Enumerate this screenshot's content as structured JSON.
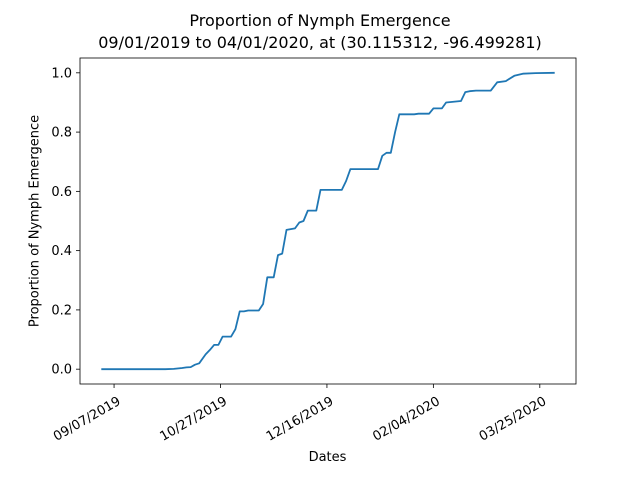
{
  "chart_data": {
    "type": "line",
    "title": "Proportion of Nymph Emergence",
    "subtitle": "09/01/2019 to 04/01/2020, at (30.115312, -96.499281)",
    "xlabel": "Dates",
    "ylabel": "Proportion of Nymph Emergence",
    "xlim": [
      "2019-08-22",
      "2020-04-11"
    ],
    "ylim": [
      -0.05,
      1.05
    ],
    "x_ticks": [
      "2019-09-07",
      "2019-10-27",
      "2019-12-16",
      "2020-02-04",
      "2020-03-25"
    ],
    "x_tick_labels": [
      "09/07/2019",
      "10/27/2019",
      "12/16/2019",
      "02/04/2020",
      "03/25/2020"
    ],
    "y_ticks": [
      0.0,
      0.2,
      0.4,
      0.6,
      0.8,
      1.0
    ],
    "y_tick_labels": [
      "0.0",
      "0.2",
      "0.4",
      "0.6",
      "0.8",
      "1.0"
    ],
    "grid": false,
    "legend": "none",
    "series": [
      {
        "color": "#1f77b4",
        "points": [
          [
            "2019-09-01",
            0.0
          ],
          [
            "2019-10-01",
            0.0
          ],
          [
            "2019-10-05",
            0.001
          ],
          [
            "2019-10-09",
            0.004
          ],
          [
            "2019-10-11",
            0.006
          ],
          [
            "2019-10-13",
            0.007
          ],
          [
            "2019-10-15",
            0.015
          ],
          [
            "2019-10-17",
            0.02
          ],
          [
            "2019-10-20",
            0.05
          ],
          [
            "2019-10-22",
            0.065
          ],
          [
            "2019-10-24",
            0.082
          ],
          [
            "2019-10-26",
            0.082
          ],
          [
            "2019-10-28",
            0.11
          ],
          [
            "2019-11-01",
            0.11
          ],
          [
            "2019-11-03",
            0.135
          ],
          [
            "2019-11-05",
            0.195
          ],
          [
            "2019-11-07",
            0.195
          ],
          [
            "2019-11-09",
            0.198
          ],
          [
            "2019-11-14",
            0.198
          ],
          [
            "2019-11-16",
            0.22
          ],
          [
            "2019-11-18",
            0.31
          ],
          [
            "2019-11-21",
            0.31
          ],
          [
            "2019-11-23",
            0.385
          ],
          [
            "2019-11-25",
            0.39
          ],
          [
            "2019-11-27",
            0.47
          ],
          [
            "2019-12-01",
            0.475
          ],
          [
            "2019-12-03",
            0.495
          ],
          [
            "2019-12-05",
            0.5
          ],
          [
            "2019-12-07",
            0.535
          ],
          [
            "2019-12-11",
            0.535
          ],
          [
            "2019-12-13",
            0.605
          ],
          [
            "2019-12-23",
            0.605
          ],
          [
            "2019-12-25",
            0.635
          ],
          [
            "2019-12-27",
            0.675
          ],
          [
            "2020-01-09",
            0.675
          ],
          [
            "2020-01-11",
            0.72
          ],
          [
            "2020-01-13",
            0.73
          ],
          [
            "2020-01-15",
            0.73
          ],
          [
            "2020-01-17",
            0.8
          ],
          [
            "2020-01-19",
            0.86
          ],
          [
            "2020-01-26",
            0.86
          ],
          [
            "2020-01-28",
            0.862
          ],
          [
            "2020-02-02",
            0.862
          ],
          [
            "2020-02-04",
            0.88
          ],
          [
            "2020-02-08",
            0.88
          ],
          [
            "2020-02-10",
            0.9
          ],
          [
            "2020-02-17",
            0.905
          ],
          [
            "2020-02-19",
            0.935
          ],
          [
            "2020-02-21",
            0.938
          ],
          [
            "2020-02-24",
            0.94
          ],
          [
            "2020-03-02",
            0.94
          ],
          [
            "2020-03-05",
            0.968
          ],
          [
            "2020-03-09",
            0.972
          ],
          [
            "2020-03-13",
            0.99
          ],
          [
            "2020-03-17",
            0.997
          ],
          [
            "2020-03-23",
            0.999
          ],
          [
            "2020-04-01",
            1.0
          ]
        ]
      }
    ]
  }
}
